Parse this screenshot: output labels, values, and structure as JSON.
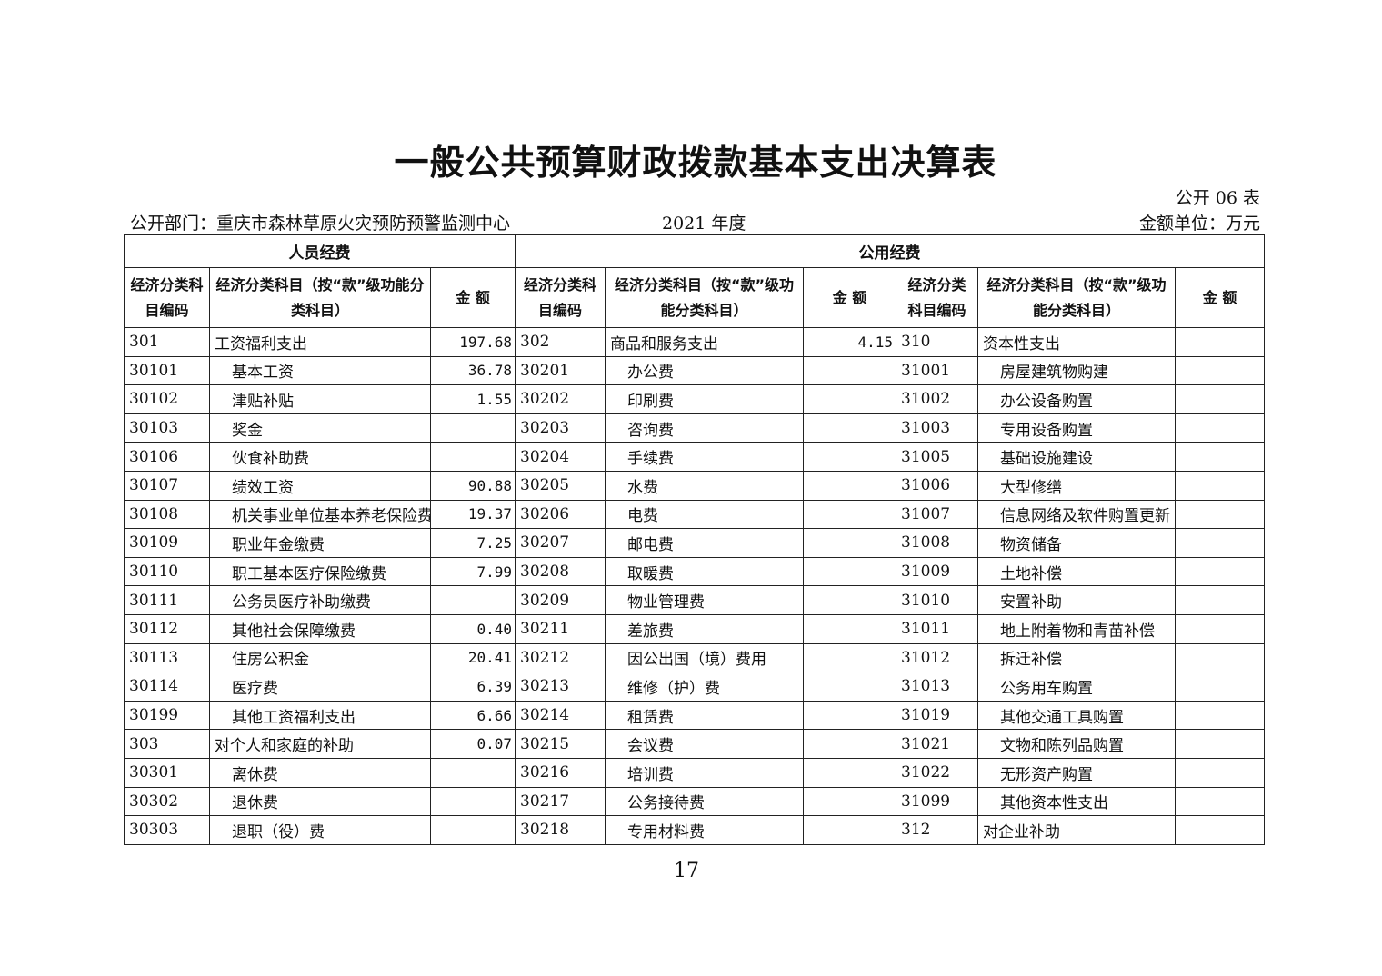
{
  "title": "一般公共预算财政拨款基本支出决算表",
  "form_no": "公开 06 表",
  "department": "公开部门：重庆市森林草原火灾预防预警监测中心",
  "year": "2021 年度",
  "unit": "金额单位：万元",
  "group_headers": {
    "personnel": "人员经费",
    "public": "公用经费"
  },
  "column_headers": {
    "code": "经济分类科目编码",
    "name": "经济分类科目（按“款”级功能分类科目）",
    "amount": "金 额"
  },
  "rows": [
    [
      [
        "301",
        "工资福利支出",
        "197.68"
      ],
      [
        "302",
        "商品和服务支出",
        "4.15"
      ],
      [
        "310",
        "资本性支出",
        ""
      ]
    ],
    [
      [
        "30101",
        "基本工资",
        "36.78"
      ],
      [
        "30201",
        "办公费",
        ""
      ],
      [
        "31001",
        "房屋建筑物购建",
        ""
      ]
    ],
    [
      [
        "30102",
        "津贴补贴",
        "1.55"
      ],
      [
        "30202",
        "印刷费",
        ""
      ],
      [
        "31002",
        "办公设备购置",
        ""
      ]
    ],
    [
      [
        "30103",
        "奖金",
        ""
      ],
      [
        "30203",
        "咨询费",
        ""
      ],
      [
        "31003",
        "专用设备购置",
        ""
      ]
    ],
    [
      [
        "30106",
        "伙食补助费",
        ""
      ],
      [
        "30204",
        "手续费",
        ""
      ],
      [
        "31005",
        "基础设施建设",
        ""
      ]
    ],
    [
      [
        "30107",
        "绩效工资",
        "90.88"
      ],
      [
        "30205",
        "水费",
        ""
      ],
      [
        "31006",
        "大型修缮",
        ""
      ]
    ],
    [
      [
        "30108",
        "机关事业单位基本养老保险费",
        "19.37"
      ],
      [
        "30206",
        "电费",
        ""
      ],
      [
        "31007",
        "信息网络及软件购置更新",
        ""
      ]
    ],
    [
      [
        "30109",
        "职业年金缴费",
        "7.25"
      ],
      [
        "30207",
        "邮电费",
        ""
      ],
      [
        "31008",
        "物资储备",
        ""
      ]
    ],
    [
      [
        "30110",
        "职工基本医疗保险缴费",
        "7.99"
      ],
      [
        "30208",
        "取暖费",
        ""
      ],
      [
        "31009",
        "土地补偿",
        ""
      ]
    ],
    [
      [
        "30111",
        "公务员医疗补助缴费",
        ""
      ],
      [
        "30209",
        "物业管理费",
        ""
      ],
      [
        "31010",
        "安置补助",
        ""
      ]
    ],
    [
      [
        "30112",
        "其他社会保障缴费",
        "0.40"
      ],
      [
        "30211",
        "差旅费",
        ""
      ],
      [
        "31011",
        "地上附着物和青苗补偿",
        ""
      ]
    ],
    [
      [
        "30113",
        "住房公积金",
        "20.41"
      ],
      [
        "30212",
        "因公出国（境）费用",
        ""
      ],
      [
        "31012",
        "拆迁补偿",
        ""
      ]
    ],
    [
      [
        "30114",
        "医疗费",
        "6.39"
      ],
      [
        "30213",
        "维修（护）费",
        ""
      ],
      [
        "31013",
        "公务用车购置",
        ""
      ]
    ],
    [
      [
        "30199",
        "其他工资福利支出",
        "6.66"
      ],
      [
        "30214",
        "租赁费",
        ""
      ],
      [
        "31019",
        "其他交通工具购置",
        ""
      ]
    ],
    [
      [
        "303",
        "对个人和家庭的补助",
        "0.07"
      ],
      [
        "30215",
        "会议费",
        ""
      ],
      [
        "31021",
        "文物和陈列品购置",
        ""
      ]
    ],
    [
      [
        "30301",
        "离休费",
        ""
      ],
      [
        "30216",
        "培训费",
        ""
      ],
      [
        "31022",
        "无形资产购置",
        ""
      ]
    ],
    [
      [
        "30302",
        "退休费",
        ""
      ],
      [
        "30217",
        "公务接待费",
        ""
      ],
      [
        "31099",
        "其他资本性支出",
        ""
      ]
    ],
    [
      [
        "30303",
        "退职（役）费",
        ""
      ],
      [
        "30218",
        "专用材料费",
        ""
      ],
      [
        "312",
        "对企业补助",
        ""
      ]
    ]
  ],
  "page_number": "17"
}
